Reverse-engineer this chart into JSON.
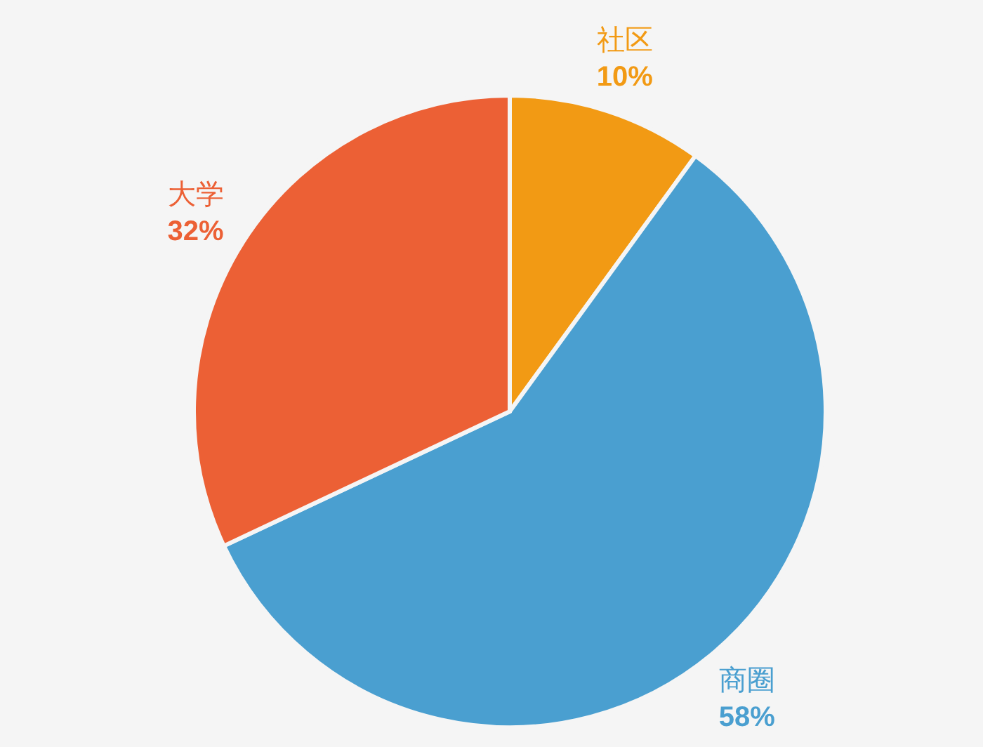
{
  "chart_data": {
    "type": "pie",
    "categories": [
      "社区",
      "商圈",
      "大学"
    ],
    "values": [
      10,
      58,
      32
    ],
    "value_labels": [
      "10%",
      "58%",
      "32%"
    ],
    "colors": [
      "#f29a14",
      "#4a9fd0",
      "#ec6035"
    ]
  }
}
